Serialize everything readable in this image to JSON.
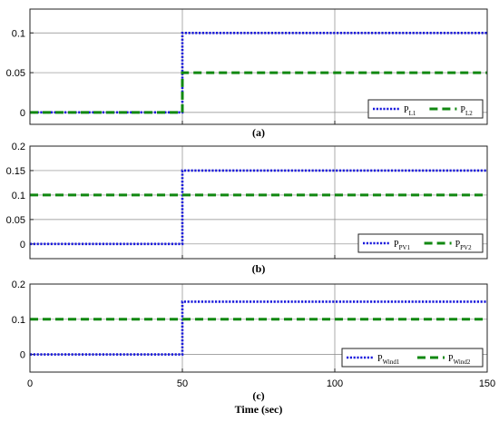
{
  "colors": {
    "series1": "#1a1adc",
    "series2": "#118811",
    "grid": "#888888",
    "axis": "#222222"
  },
  "chart_data": [
    {
      "type": "line",
      "caption": "(a)",
      "xlim": [
        0,
        150
      ],
      "ylim": [
        -0.015,
        0.13
      ],
      "x_ticks": [
        "0",
        "50",
        "100",
        "150"
      ],
      "y_ticks": [
        "0",
        "0.05",
        "0.1"
      ],
      "y_tick_values": [
        0,
        0.05,
        0.1
      ],
      "grid": true,
      "legend_placement": "bottom-right",
      "series": [
        {
          "name": "P",
          "name_sub": "L1",
          "style": "dotted",
          "points": [
            [
              0,
              0
            ],
            [
              50,
              0
            ],
            [
              50,
              0.1
            ],
            [
              150,
              0.1
            ]
          ]
        },
        {
          "name": "P",
          "name_sub": "L2",
          "style": "dashed",
          "points": [
            [
              0,
              0
            ],
            [
              50,
              0
            ],
            [
              50,
              0.05
            ],
            [
              150,
              0.05
            ]
          ]
        }
      ]
    },
    {
      "type": "line",
      "caption": "(b)",
      "xlim": [
        0,
        150
      ],
      "ylim": [
        -0.03,
        0.2
      ],
      "x_ticks": [
        "0",
        "50",
        "100",
        "150"
      ],
      "y_ticks": [
        "0",
        "0.05",
        "0.1",
        "0.15",
        "0.2"
      ],
      "y_tick_values": [
        0,
        0.05,
        0.1,
        0.15,
        0.2
      ],
      "grid": true,
      "legend_placement": "bottom-right",
      "series": [
        {
          "name": "P",
          "name_sub": "PV1",
          "style": "dotted",
          "points": [
            [
              0,
              0
            ],
            [
              50,
              0
            ],
            [
              50,
              0.15
            ],
            [
              150,
              0.15
            ]
          ]
        },
        {
          "name": "P",
          "name_sub": "PV2",
          "style": "dashed",
          "points": [
            [
              0,
              0.1
            ],
            [
              150,
              0.1
            ]
          ]
        }
      ]
    },
    {
      "type": "line",
      "caption": "(c)",
      "xlabel": "Time (sec)",
      "xlim": [
        0,
        150
      ],
      "ylim": [
        -0.05,
        0.2
      ],
      "x_ticks": [
        "0",
        "50",
        "100",
        "150"
      ],
      "x_tick_values": [
        0,
        50,
        100,
        150
      ],
      "y_ticks": [
        "0",
        "0.1",
        "0.2"
      ],
      "y_tick_values": [
        0,
        0.1,
        0.2
      ],
      "grid": true,
      "legend_placement": "bottom-right",
      "series": [
        {
          "name": "P",
          "name_sub": "Wind1",
          "style": "dotted",
          "points": [
            [
              0,
              0
            ],
            [
              50,
              0
            ],
            [
              50,
              0.15
            ],
            [
              150,
              0.15
            ]
          ]
        },
        {
          "name": "P",
          "name_sub": "Wind2",
          "style": "dashed",
          "points": [
            [
              0,
              0.1
            ],
            [
              150,
              0.1
            ]
          ]
        }
      ]
    }
  ]
}
